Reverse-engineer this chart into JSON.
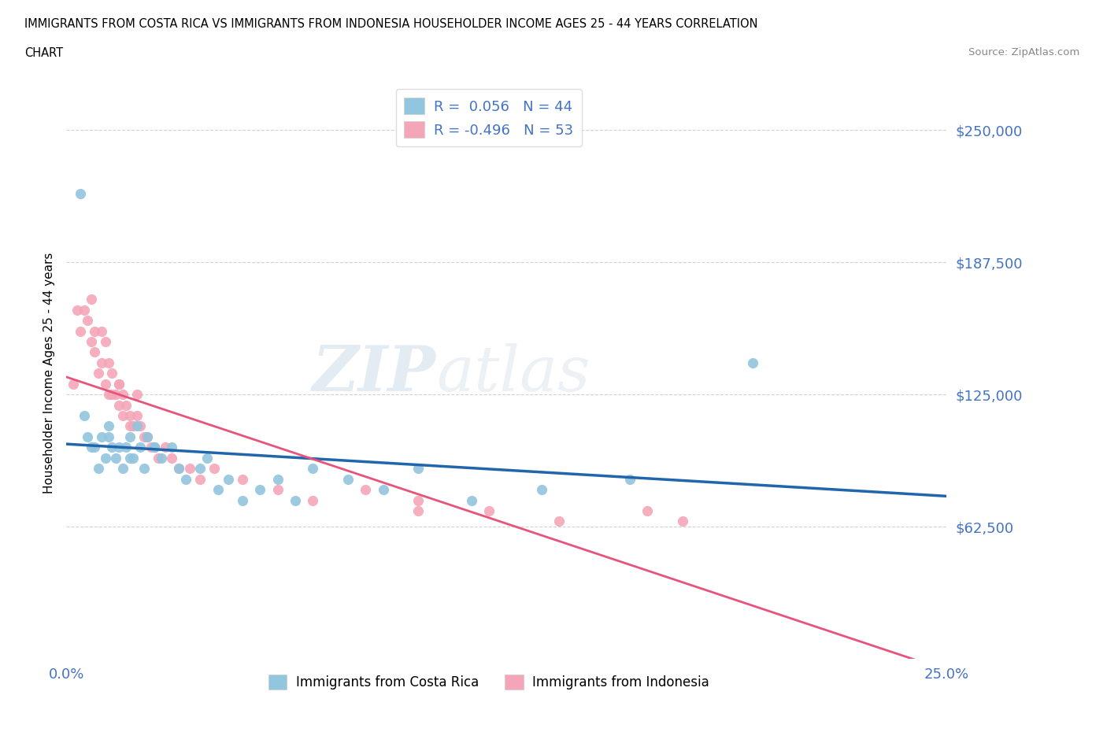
{
  "title_line1": "IMMIGRANTS FROM COSTA RICA VS IMMIGRANTS FROM INDONESIA HOUSEHOLDER INCOME AGES 25 - 44 YEARS CORRELATION",
  "title_line2": "CHART",
  "source": "Source: ZipAtlas.com",
  "ylabel": "Householder Income Ages 25 - 44 years",
  "xlim": [
    0.0,
    0.25
  ],
  "ylim": [
    0,
    270000
  ],
  "yticks": [
    0,
    62500,
    125000,
    187500,
    250000
  ],
  "ytick_labels": [
    "",
    "$62,500",
    "$125,000",
    "$187,500",
    "$250,000"
  ],
  "xticks": [
    0.0,
    0.05,
    0.1,
    0.15,
    0.2,
    0.25
  ],
  "xtick_labels": [
    "0.0%",
    "",
    "",
    "",
    "",
    "25.0%"
  ],
  "color_blue": "#92c5de",
  "color_pink": "#f4a6b8",
  "color_blue_line": "#2166ac",
  "color_pink_line": "#e8537a",
  "color_axis_text": "#4472c4",
  "watermark_zip": "ZIP",
  "watermark_atlas": "atlas",
  "legend_r1": "R =  0.056   N = 44",
  "legend_r2": "R = -0.496   N = 53",
  "costa_rica_x": [
    0.004,
    0.005,
    0.006,
    0.007,
    0.008,
    0.009,
    0.01,
    0.011,
    0.012,
    0.013,
    0.014,
    0.015,
    0.016,
    0.017,
    0.018,
    0.019,
    0.02,
    0.021,
    0.022,
    0.023,
    0.025,
    0.027,
    0.03,
    0.032,
    0.034,
    0.038,
    0.04,
    0.043,
    0.046,
    0.05,
    0.055,
    0.06,
    0.065,
    0.07,
    0.08,
    0.09,
    0.1,
    0.115,
    0.135,
    0.16,
    0.012,
    0.018,
    0.025,
    0.195
  ],
  "costa_rica_y": [
    220000,
    115000,
    105000,
    100000,
    100000,
    90000,
    105000,
    95000,
    110000,
    100000,
    95000,
    100000,
    90000,
    100000,
    105000,
    95000,
    110000,
    100000,
    90000,
    105000,
    100000,
    95000,
    100000,
    90000,
    85000,
    90000,
    95000,
    80000,
    85000,
    75000,
    80000,
    85000,
    75000,
    90000,
    85000,
    80000,
    90000,
    75000,
    80000,
    85000,
    105000,
    95000,
    100000,
    140000
  ],
  "indonesia_x": [
    0.002,
    0.003,
    0.004,
    0.005,
    0.006,
    0.007,
    0.007,
    0.008,
    0.008,
    0.009,
    0.01,
    0.01,
    0.011,
    0.011,
    0.012,
    0.012,
    0.013,
    0.013,
    0.014,
    0.015,
    0.015,
    0.016,
    0.016,
    0.017,
    0.018,
    0.018,
    0.019,
    0.02,
    0.021,
    0.022,
    0.023,
    0.024,
    0.025,
    0.026,
    0.028,
    0.03,
    0.032,
    0.035,
    0.038,
    0.042,
    0.05,
    0.06,
    0.07,
    0.085,
    0.1,
    0.1,
    0.12,
    0.14,
    0.165,
    0.175,
    0.015,
    0.02,
    0.025
  ],
  "indonesia_y": [
    130000,
    165000,
    155000,
    165000,
    160000,
    150000,
    170000,
    145000,
    155000,
    135000,
    155000,
    140000,
    150000,
    130000,
    140000,
    125000,
    135000,
    125000,
    125000,
    130000,
    120000,
    125000,
    115000,
    120000,
    115000,
    110000,
    110000,
    115000,
    110000,
    105000,
    105000,
    100000,
    100000,
    95000,
    100000,
    95000,
    90000,
    90000,
    85000,
    90000,
    85000,
    80000,
    75000,
    80000,
    75000,
    70000,
    70000,
    65000,
    70000,
    65000,
    130000,
    125000,
    100000
  ]
}
